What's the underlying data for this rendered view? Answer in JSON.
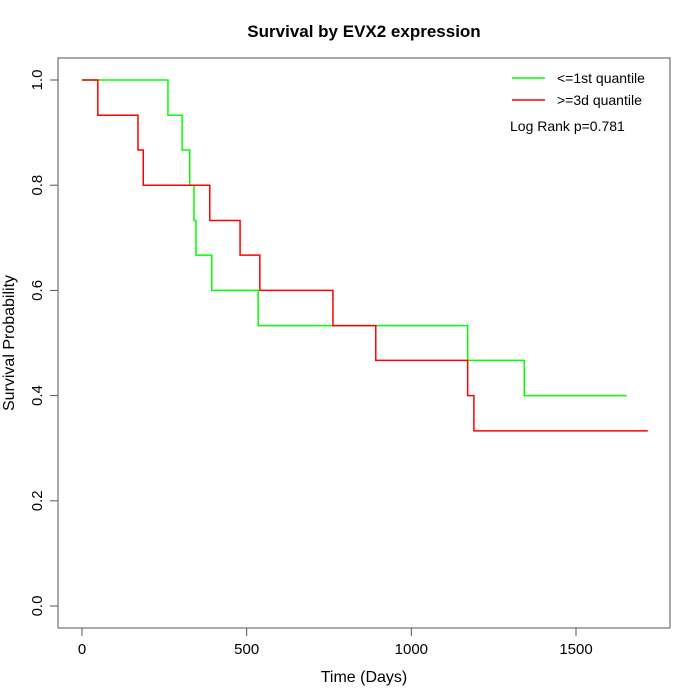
{
  "chart_data": {
    "type": "line",
    "step": true,
    "title": "Survival by EVX2 expression",
    "xlabel": "Time (Days)",
    "ylabel": "Survival Probability",
    "xlim": [
      0,
      1750
    ],
    "ylim": [
      0,
      1
    ],
    "xticks": [
      0,
      500,
      1000,
      1500
    ],
    "xtick_labels": [
      "0",
      "500",
      "1000",
      "1500"
    ],
    "yticks": [
      0,
      0.2,
      0.4,
      0.6,
      0.8,
      1.0
    ],
    "ytick_labels": [
      "0.0",
      "0.2",
      "0.4",
      "0.6",
      "0.8",
      "1.0"
    ],
    "grid": false,
    "legend_position": "top-right",
    "annotation": "Log Rank p=0.781",
    "series": [
      {
        "name": "<=1st quantile",
        "color": "#00ff00",
        "x": [
          0,
          261,
          304,
          327,
          340,
          346,
          394,
          535,
          1171,
          1343,
          1654
        ],
        "y": [
          1.0,
          0.933,
          0.867,
          0.8,
          0.733,
          0.667,
          0.6,
          0.533,
          0.467,
          0.4,
          0.4
        ]
      },
      {
        "name": ">=3d quantile",
        "color": "#ff0000",
        "x": [
          0,
          48,
          170,
          186,
          388,
          480,
          540,
          762,
          892,
          1171,
          1190,
          1718
        ],
        "y": [
          1.0,
          0.933,
          0.867,
          0.8,
          0.733,
          0.667,
          0.6,
          0.533,
          0.467,
          0.4,
          0.333,
          0.333
        ]
      }
    ]
  }
}
